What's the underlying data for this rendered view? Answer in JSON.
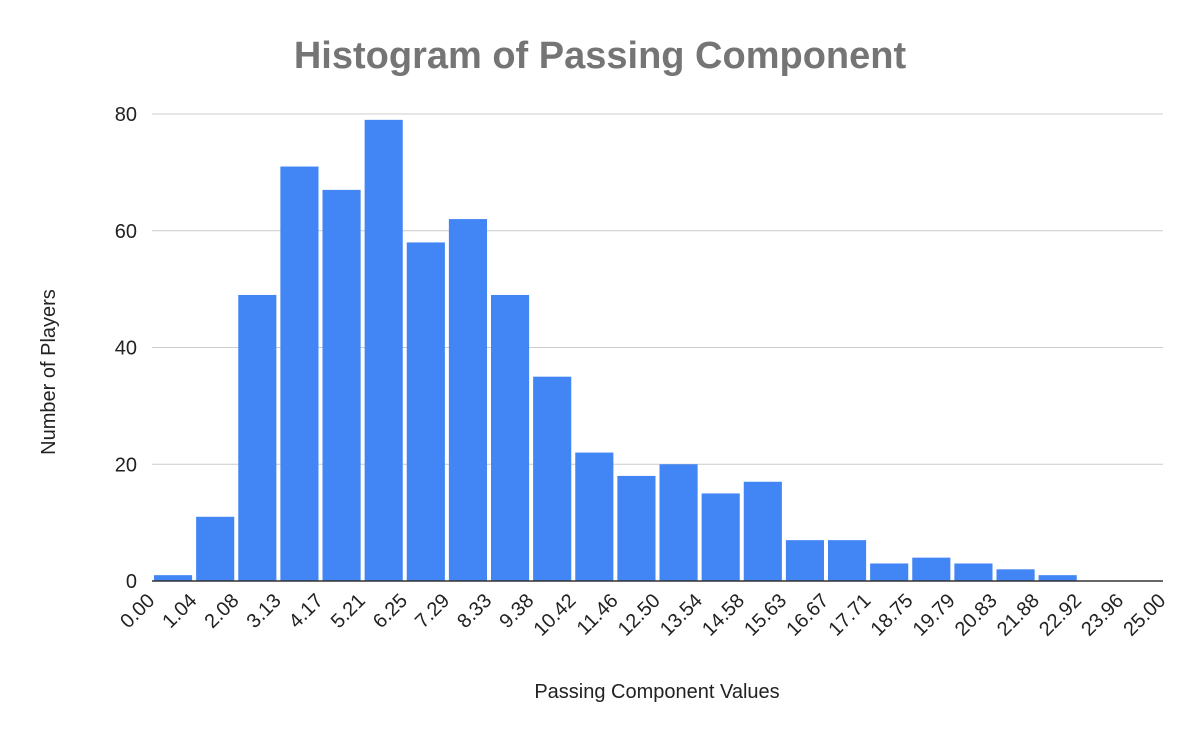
{
  "chart_data": {
    "type": "bar",
    "title": "Histogram of Passing Component",
    "xlabel": "Passing Component Values",
    "ylabel": "Number of Players",
    "x_ticks": [
      "0.00",
      "1.04",
      "2.08",
      "3.13",
      "4.17",
      "5.21",
      "6.25",
      "7.29",
      "8.33",
      "9.38",
      "10.42",
      "11.46",
      "12.50",
      "13.54",
      "14.58",
      "15.63",
      "16.67",
      "17.71",
      "18.75",
      "19.79",
      "20.83",
      "21.88",
      "22.92",
      "23.96",
      "25.00"
    ],
    "values": [
      1,
      11,
      49,
      71,
      67,
      79,
      58,
      62,
      49,
      35,
      22,
      18,
      20,
      15,
      17,
      7,
      7,
      3,
      4,
      3,
      2,
      1,
      0,
      0
    ],
    "y_ticks": [
      "0",
      "20",
      "40",
      "60",
      "80"
    ],
    "ylim": [
      0,
      80
    ],
    "grid": true,
    "bar_color": "#4285f4"
  }
}
